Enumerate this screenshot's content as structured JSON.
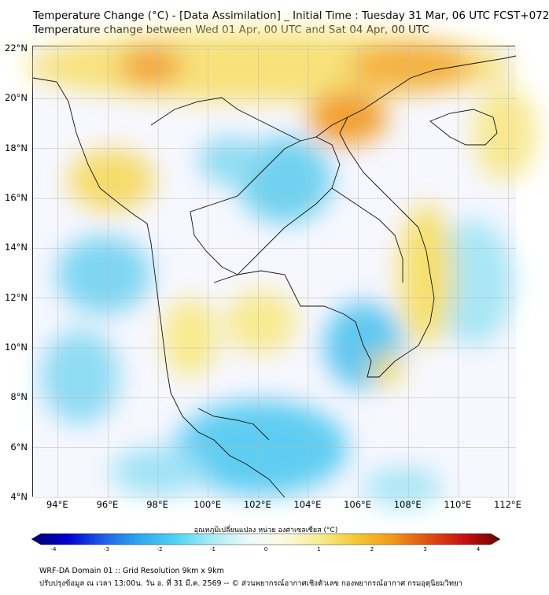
{
  "title": {
    "line1": "Temperature Change (°C) - [Data Assimilation] _ Initial Time : Tuesday 31 Mar, 06 UTC FCST+072",
    "line2": "Temperature change between Wed 01 Apr, 00 UTC and Sat 04 Apr, 00 UTC"
  },
  "map": {
    "lat_labels": [
      {
        "text": "22°N",
        "value": 22
      },
      {
        "text": "20°N",
        "value": 20
      },
      {
        "text": "18°N",
        "value": 18
      },
      {
        "text": "16°N",
        "value": 16
      },
      {
        "text": "14°N",
        "value": 14
      },
      {
        "text": "12°N",
        "value": 12
      },
      {
        "text": "10°N",
        "value": 10
      },
      {
        "text": "8°N",
        "value": 8
      },
      {
        "text": "6°N",
        "value": 6
      },
      {
        "text": "4°N",
        "value": 4
      }
    ],
    "lon_labels": [
      {
        "text": "94°E",
        "value": 94
      },
      {
        "text": "96°E",
        "value": 96
      },
      {
        "text": "98°E",
        "value": 98
      },
      {
        "text": "100°E",
        "value": 100
      },
      {
        "text": "102°E",
        "value": 102
      },
      {
        "text": "104°E",
        "value": 104
      },
      {
        "text": "106°E",
        "value": 106
      },
      {
        "text": "108°E",
        "value": 108
      },
      {
        "text": "110°E",
        "value": 110
      },
      {
        "text": "112°E",
        "value": 112
      }
    ],
    "extent": {
      "lon_min": 93,
      "lon_max": 112.3,
      "lat_min": 4,
      "lat_max": 22.1
    },
    "ocean_color": "#f7f7ff",
    "border_color": "#111111"
  },
  "colorbar": {
    "title": "อุณหภูมิเปลี่ยนแปลง หน่วย องศาเซลเซียส (°C)",
    "min": -4,
    "max": 4,
    "ticks": [
      {
        "text": "-4",
        "value": -4
      },
      {
        "text": "-3",
        "value": -3
      },
      {
        "text": "-2",
        "value": -2
      },
      {
        "text": "-1",
        "value": -1
      },
      {
        "text": "0",
        "value": 0
      },
      {
        "text": "1",
        "value": 1
      },
      {
        "text": "2",
        "value": 2
      },
      {
        "text": "3",
        "value": 3
      },
      {
        "text": "4",
        "value": 4
      }
    ],
    "colors": [
      "#00006a",
      "#0000d0",
      "#1f5fe8",
      "#2fa8f0",
      "#4fd3f2",
      "#a8ecf6",
      "#eef9fc",
      "#fbfbe0",
      "#f6ec8c",
      "#f5c832",
      "#f09a18",
      "#e05010",
      "#c81010",
      "#6a0000"
    ]
  },
  "footer": {
    "line1": "WRF-DA Domain 01 :: Grid Resolution 9km x 9km",
    "line2": "ปรับปรุงข้อมูล ณ เวลา 13:00น. วัน อ. ที่ 31 มี.ค. 2569 -- © ส่วนพยากรณ์อากาศเชิงตัวเลข กองพยากรณ์อากาศ กรมอุตุนิยมวิทยา"
  }
}
